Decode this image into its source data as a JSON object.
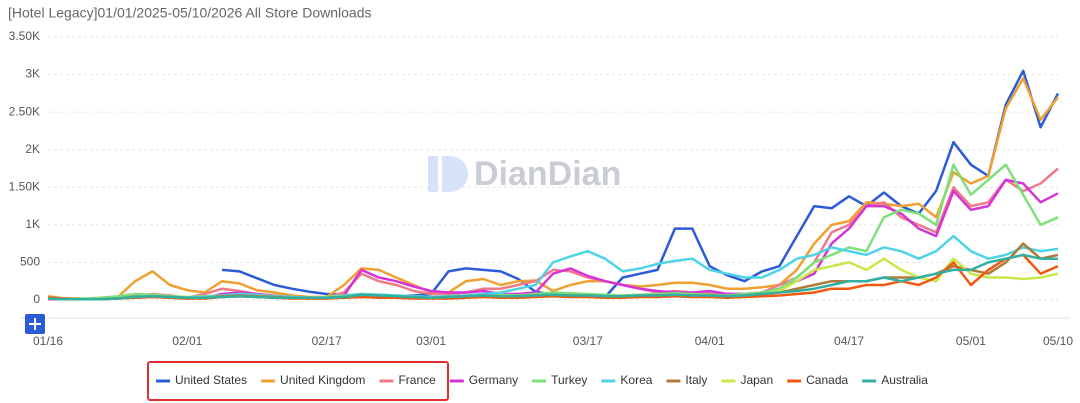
{
  "chart_data": {
    "type": "line",
    "title": "[Hotel Legacy]01/01/2025-05/10/2026 All Store Downloads",
    "watermark": "DianDian",
    "categories": [
      "01/16",
      null,
      null,
      null,
      null,
      null,
      null,
      null,
      "02/01",
      null,
      null,
      null,
      null,
      null,
      null,
      null,
      "02/17",
      null,
      null,
      null,
      null,
      null,
      "03/01",
      null,
      null,
      null,
      null,
      null,
      null,
      null,
      null,
      "03/17",
      null,
      null,
      null,
      null,
      null,
      null,
      "04/01",
      null,
      null,
      null,
      null,
      null,
      null,
      null,
      "04/17",
      null,
      null,
      null,
      null,
      null,
      null,
      "05/01",
      null,
      null,
      null,
      null,
      "05/10"
    ],
    "ylim": [
      0,
      3500
    ],
    "yticks": [
      0,
      500,
      {
        "value": 1000,
        "label": "1K"
      },
      {
        "value": 1500,
        "label": "1.50K"
      },
      {
        "value": 2000,
        "label": "2K"
      },
      {
        "value": 2500,
        "label": "2.50K"
      },
      {
        "value": 3000,
        "label": "3K"
      },
      {
        "value": 3500,
        "label": "3.50K"
      }
    ],
    "grid": true,
    "legend": "bottom",
    "series": [
      {
        "name": "United States",
        "color": "#2c5bd6",
        "values": [
          null,
          null,
          null,
          null,
          null,
          null,
          null,
          null,
          null,
          null,
          400,
          380,
          290,
          200,
          150,
          110,
          80,
          70,
          60,
          50,
          50,
          60,
          80,
          380,
          420,
          400,
          380,
          280,
          110,
          70,
          60,
          50,
          40,
          300,
          350,
          400,
          950,
          950,
          450,
          330,
          250,
          380,
          450,
          850,
          1250,
          1220,
          1380,
          1250,
          1430,
          1250,
          1150,
          1450,
          2100,
          1800,
          1650,
          2600,
          3050,
          2300,
          2750
        ]
      },
      {
        "name": "United Kingdom",
        "color": "#f0a030",
        "values": [
          50,
          20,
          10,
          10,
          40,
          250,
          380,
          200,
          130,
          100,
          250,
          220,
          130,
          100,
          60,
          40,
          40,
          200,
          420,
          400,
          300,
          200,
          100,
          100,
          250,
          280,
          200,
          250,
          260,
          120,
          200,
          250,
          250,
          200,
          180,
          200,
          230,
          230,
          200,
          150,
          150,
          170,
          200,
          400,
          750,
          1000,
          1050,
          1300,
          1280,
          1250,
          1280,
          1100,
          1700,
          1550,
          1650,
          2550,
          2950,
          2400,
          2700
        ]
      },
      {
        "name": "France",
        "color": "#f07a8a",
        "values": [
          20,
          10,
          10,
          10,
          20,
          50,
          80,
          60,
          30,
          80,
          150,
          120,
          80,
          60,
          40,
          30,
          30,
          100,
          350,
          250,
          200,
          120,
          80,
          80,
          100,
          150,
          150,
          200,
          250,
          400,
          380,
          300,
          250,
          200,
          150,
          100,
          120,
          100,
          100,
          80,
          80,
          100,
          200,
          300,
          500,
          900,
          1000,
          1250,
          1300,
          1100,
          1000,
          900,
          1500,
          1250,
          1300,
          1600,
          1450,
          1550,
          1750
        ]
      },
      {
        "name": "Germany",
        "color": "#d633d6",
        "values": [
          10,
          10,
          10,
          10,
          30,
          60,
          60,
          30,
          20,
          30,
          80,
          100,
          80,
          50,
          30,
          20,
          20,
          60,
          400,
          300,
          250,
          180,
          120,
          100,
          100,
          120,
          80,
          80,
          100,
          350,
          420,
          320,
          250,
          200,
          150,
          120,
          100,
          100,
          120,
          80,
          80,
          100,
          150,
          250,
          350,
          750,
          950,
          1250,
          1250,
          1150,
          950,
          850,
          1450,
          1200,
          1250,
          1600,
          1550,
          1300,
          1420
        ]
      },
      {
        "name": "Turkey",
        "color": "#7ee07a",
        "values": [
          30,
          20,
          20,
          30,
          50,
          80,
          70,
          50,
          40,
          50,
          60,
          80,
          60,
          50,
          40,
          30,
          40,
          60,
          80,
          70,
          60,
          50,
          40,
          50,
          60,
          80,
          70,
          60,
          80,
          100,
          90,
          80,
          70,
          60,
          70,
          80,
          90,
          80,
          70,
          60,
          80,
          100,
          150,
          300,
          500,
          600,
          700,
          650,
          1100,
          1200,
          1150,
          1000,
          1800,
          1400,
          1600,
          1800,
          1400,
          1000,
          1100
        ]
      },
      {
        "name": "Korea",
        "color": "#4fd3e8",
        "values": [
          20,
          10,
          10,
          10,
          20,
          40,
          50,
          40,
          30,
          40,
          60,
          80,
          70,
          50,
          40,
          30,
          30,
          50,
          80,
          70,
          60,
          50,
          40,
          50,
          60,
          80,
          100,
          150,
          200,
          500,
          580,
          650,
          550,
          380,
          420,
          480,
          520,
          550,
          400,
          350,
          300,
          300,
          400,
          550,
          600,
          700,
          650,
          600,
          700,
          650,
          550,
          650,
          850,
          650,
          550,
          600,
          700,
          650,
          680
        ]
      },
      {
        "name": "Italy",
        "color": "#b07a3a",
        "values": [
          20,
          10,
          10,
          10,
          20,
          40,
          50,
          40,
          30,
          30,
          50,
          60,
          50,
          40,
          30,
          30,
          30,
          40,
          60,
          50,
          40,
          40,
          30,
          40,
          50,
          60,
          50,
          50,
          60,
          70,
          60,
          60,
          50,
          50,
          60,
          60,
          70,
          60,
          60,
          50,
          60,
          80,
          100,
          150,
          200,
          250,
          250,
          250,
          300,
          300,
          300,
          350,
          450,
          400,
          350,
          500,
          750,
          550,
          600
        ]
      },
      {
        "name": "Japan",
        "color": "#c8e84a",
        "values": [
          20,
          10,
          10,
          10,
          20,
          30,
          40,
          30,
          20,
          30,
          40,
          50,
          40,
          30,
          30,
          20,
          20,
          30,
          50,
          40,
          40,
          30,
          30,
          30,
          40,
          50,
          40,
          40,
          50,
          60,
          50,
          50,
          40,
          40,
          50,
          50,
          60,
          50,
          50,
          40,
          50,
          70,
          120,
          250,
          400,
          450,
          500,
          400,
          550,
          400,
          300,
          250,
          550,
          350,
          300,
          300,
          280,
          300,
          350
        ]
      },
      {
        "name": "Canada",
        "color": "#f05a10",
        "values": [
          30,
          20,
          10,
          10,
          20,
          30,
          40,
          30,
          20,
          20,
          40,
          50,
          40,
          30,
          20,
          20,
          20,
          30,
          40,
          30,
          30,
          20,
          20,
          20,
          30,
          40,
          30,
          30,
          40,
          50,
          40,
          40,
          30,
          30,
          40,
          40,
          50,
          40,
          40,
          30,
          40,
          50,
          60,
          80,
          100,
          150,
          150,
          200,
          200,
          250,
          200,
          300,
          500,
          200,
          400,
          550,
          600,
          350,
          450
        ]
      },
      {
        "name": "Australia",
        "color": "#30b0a0",
        "values": [
          20,
          10,
          10,
          10,
          20,
          40,
          50,
          40,
          30,
          30,
          40,
          50,
          40,
          30,
          30,
          30,
          30,
          40,
          70,
          60,
          50,
          40,
          30,
          40,
          50,
          60,
          50,
          50,
          60,
          70,
          60,
          60,
          50,
          50,
          60,
          60,
          70,
          60,
          60,
          50,
          60,
          80,
          100,
          120,
          150,
          200,
          250,
          250,
          300,
          250,
          300,
          350,
          400,
          400,
          500,
          550,
          600,
          550,
          550
        ]
      }
    ]
  }
}
